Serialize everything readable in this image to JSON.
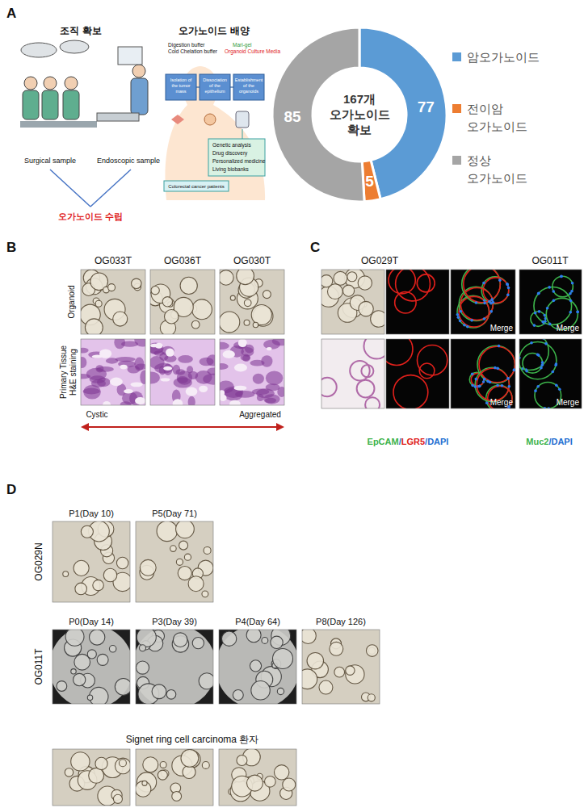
{
  "chart_data": {
    "type": "donut",
    "categories": [
      "암오가노이드",
      "전이암 오가노이드",
      "정상 오가노이드"
    ],
    "values": [
      77,
      5,
      85
    ],
    "colors": [
      "#5b9bd5",
      "#ed7d31",
      "#a5a5a5"
    ],
    "data_labels": true,
    "legend": "right",
    "annotations": [
      "167개",
      "오가노이드",
      "확보"
    ]
  },
  "figure": {
    "panel_labels": [
      "A",
      "B",
      "C",
      "D"
    ],
    "panel_a": {
      "section_titles": [
        "조직 확보",
        "오가노이드 배양"
      ],
      "samples": [
        "Surgical sample",
        "Endoscopic sample"
      ],
      "result": "오가노이드 수립",
      "reagents": [
        "Digestion buffer",
        "Cold Chelation buffer",
        "Mari-gel",
        "Organoid Culture Media"
      ],
      "steps": [
        "Isolation of the tumor mass",
        "Dissociation of the epithelium",
        "Establishment of the organoids"
      ],
      "source": "Colorectal cancer patients",
      "applications": [
        "Genetic analysis",
        "Drug discovery",
        "Personalized medicine",
        "Living biobanks"
      ]
    },
    "panel_b": {
      "columns": [
        "OG033T",
        "OG036T",
        "OG030T"
      ],
      "row_labels": [
        [
          "Organoid"
        ],
        [
          "Primary Tissue",
          "H&E staining"
        ]
      ],
      "spectrum": [
        "Cystic",
        "Aggregated"
      ]
    },
    "panel_c": {
      "samples": [
        "OG029T",
        "OG011T"
      ],
      "merge": "Merge",
      "separator": "/",
      "stains": [
        [
          {
            "name": "EpCAM",
            "color": "#3cb34a"
          },
          {
            "name": "LGR5",
            "color": "#e0201b"
          },
          {
            "name": "DAPI",
            "color": "#1f6fd1"
          }
        ],
        [
          {
            "name": "Muc2",
            "color": "#3cb34a"
          },
          {
            "name": "DAPI",
            "color": "#1f6fd1"
          }
        ]
      ]
    },
    "panel_d": {
      "rows": [
        {
          "label": "OG029N",
          "timepoints": [
            "P1(Day 10)",
            "P5(Day 71)"
          ]
        },
        {
          "label": "OG011T",
          "timepoints": [
            "P0(Day 14)",
            "P3(Day 39)",
            "P4(Day 64)",
            "P8(Day 126)"
          ]
        },
        {
          "label": "Signet ring cell carcinoma 환자"
        }
      ]
    }
  }
}
